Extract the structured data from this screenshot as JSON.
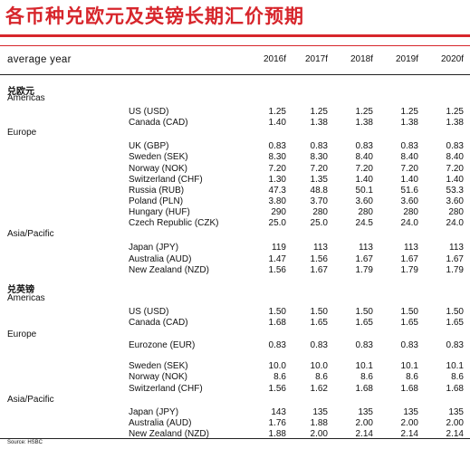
{
  "title": "各币种兑欧元及英镑长期汇价预期",
  "header": {
    "label": "average year",
    "years": [
      "2016f",
      "2017f",
      "2018f",
      "2019f",
      "2020f"
    ]
  },
  "sections": [
    {
      "title": "兑欧元",
      "regions": [
        {
          "name": "Americas",
          "rows": [
            {
              "currency": "US (USD)",
              "values": [
                "1.25",
                "1.25",
                "1.25",
                "1.25",
                "1.25"
              ]
            },
            {
              "currency": "Canada (CAD)",
              "values": [
                "1.40",
                "1.38",
                "1.38",
                "1.38",
                "1.38"
              ]
            }
          ]
        },
        {
          "name": "Europe",
          "rows": [
            {
              "currency": "UK (GBP)",
              "values": [
                "0.83",
                "0.83",
                "0.83",
                "0.83",
                "0.83"
              ]
            },
            {
              "currency": "Sweden (SEK)",
              "values": [
                "8.30",
                "8.30",
                "8.40",
                "8.40",
                "8.40"
              ]
            },
            {
              "currency": "Norway (NOK)",
              "values": [
                "7.20",
                "7.20",
                "7.20",
                "7.20",
                "7.20"
              ]
            },
            {
              "currency": "Switzerland (CHF)",
              "values": [
                "1.30",
                "1.35",
                "1.40",
                "1.40",
                "1.40"
              ]
            },
            {
              "currency": "Russia (RUB)",
              "values": [
                "47.3",
                "48.8",
                "50.1",
                "51.6",
                "53.3"
              ]
            },
            {
              "currency": "Poland (PLN)",
              "values": [
                "3.80",
                "3.70",
                "3.60",
                "3.60",
                "3.60"
              ]
            },
            {
              "currency": "Hungary (HUF)",
              "values": [
                "290",
                "280",
                "280",
                "280",
                "280"
              ]
            },
            {
              "currency": "Czech Republic (CZK)",
              "values": [
                "25.0",
                "25.0",
                "24.5",
                "24.0",
                "24.0"
              ]
            }
          ]
        },
        {
          "name": "Asia/Pacific",
          "rows": [
            {
              "currency": "Japan (JPY)",
              "values": [
                "119",
                "113",
                "113",
                "113",
                "113"
              ]
            },
            {
              "currency": "Australia (AUD)",
              "values": [
                "1.47",
                "1.56",
                "1.67",
                "1.67",
                "1.67"
              ]
            },
            {
              "currency": "New Zealand (NZD)",
              "values": [
                "1.56",
                "1.67",
                "1.79",
                "1.79",
                "1.79"
              ]
            }
          ]
        }
      ]
    },
    {
      "title": "兑英镑",
      "regions": [
        {
          "name": "Americas",
          "rows": [
            {
              "currency": "US (USD)",
              "values": [
                "1.50",
                "1.50",
                "1.50",
                "1.50",
                "1.50"
              ]
            },
            {
              "currency": "Canada (CAD)",
              "values": [
                "1.68",
                "1.65",
                "1.65",
                "1.65",
                "1.65"
              ]
            }
          ]
        },
        {
          "name": "Europe",
          "rows": [
            {
              "currency": "Eurozone (EUR)",
              "values": [
                "0.83",
                "0.83",
                "0.83",
                "0.83",
                "0.83"
              ]
            },
            {
              "currency": "Sweden (SEK)",
              "values": [
                "10.0",
                "10.0",
                "10.1",
                "10.1",
                "10.1"
              ]
            },
            {
              "currency": "Norway (NOK)",
              "values": [
                "8.6",
                "8.6",
                "8.6",
                "8.6",
                "8.6"
              ]
            },
            {
              "currency": "Switzerland (CHF)",
              "values": [
                "1.56",
                "1.62",
                "1.68",
                "1.68",
                "1.68"
              ]
            }
          ]
        },
        {
          "name": "Asia/Pacific",
          "rows": [
            {
              "currency": "Japan (JPY)",
              "values": [
                "143",
                "135",
                "135",
                "135",
                "135"
              ]
            },
            {
              "currency": "Australia (AUD)",
              "values": [
                "1.76",
                "1.88",
                "2.00",
                "2.00",
                "2.00"
              ]
            },
            {
              "currency": "New Zealand (NZD)",
              "values": [
                "1.88",
                "2.00",
                "2.14",
                "2.14",
                "2.14"
              ]
            }
          ]
        }
      ]
    }
  ],
  "source": "Source: HSBC",
  "colors": {
    "accent": "#d7262c",
    "text": "#111111",
    "rule": "#222222"
  }
}
